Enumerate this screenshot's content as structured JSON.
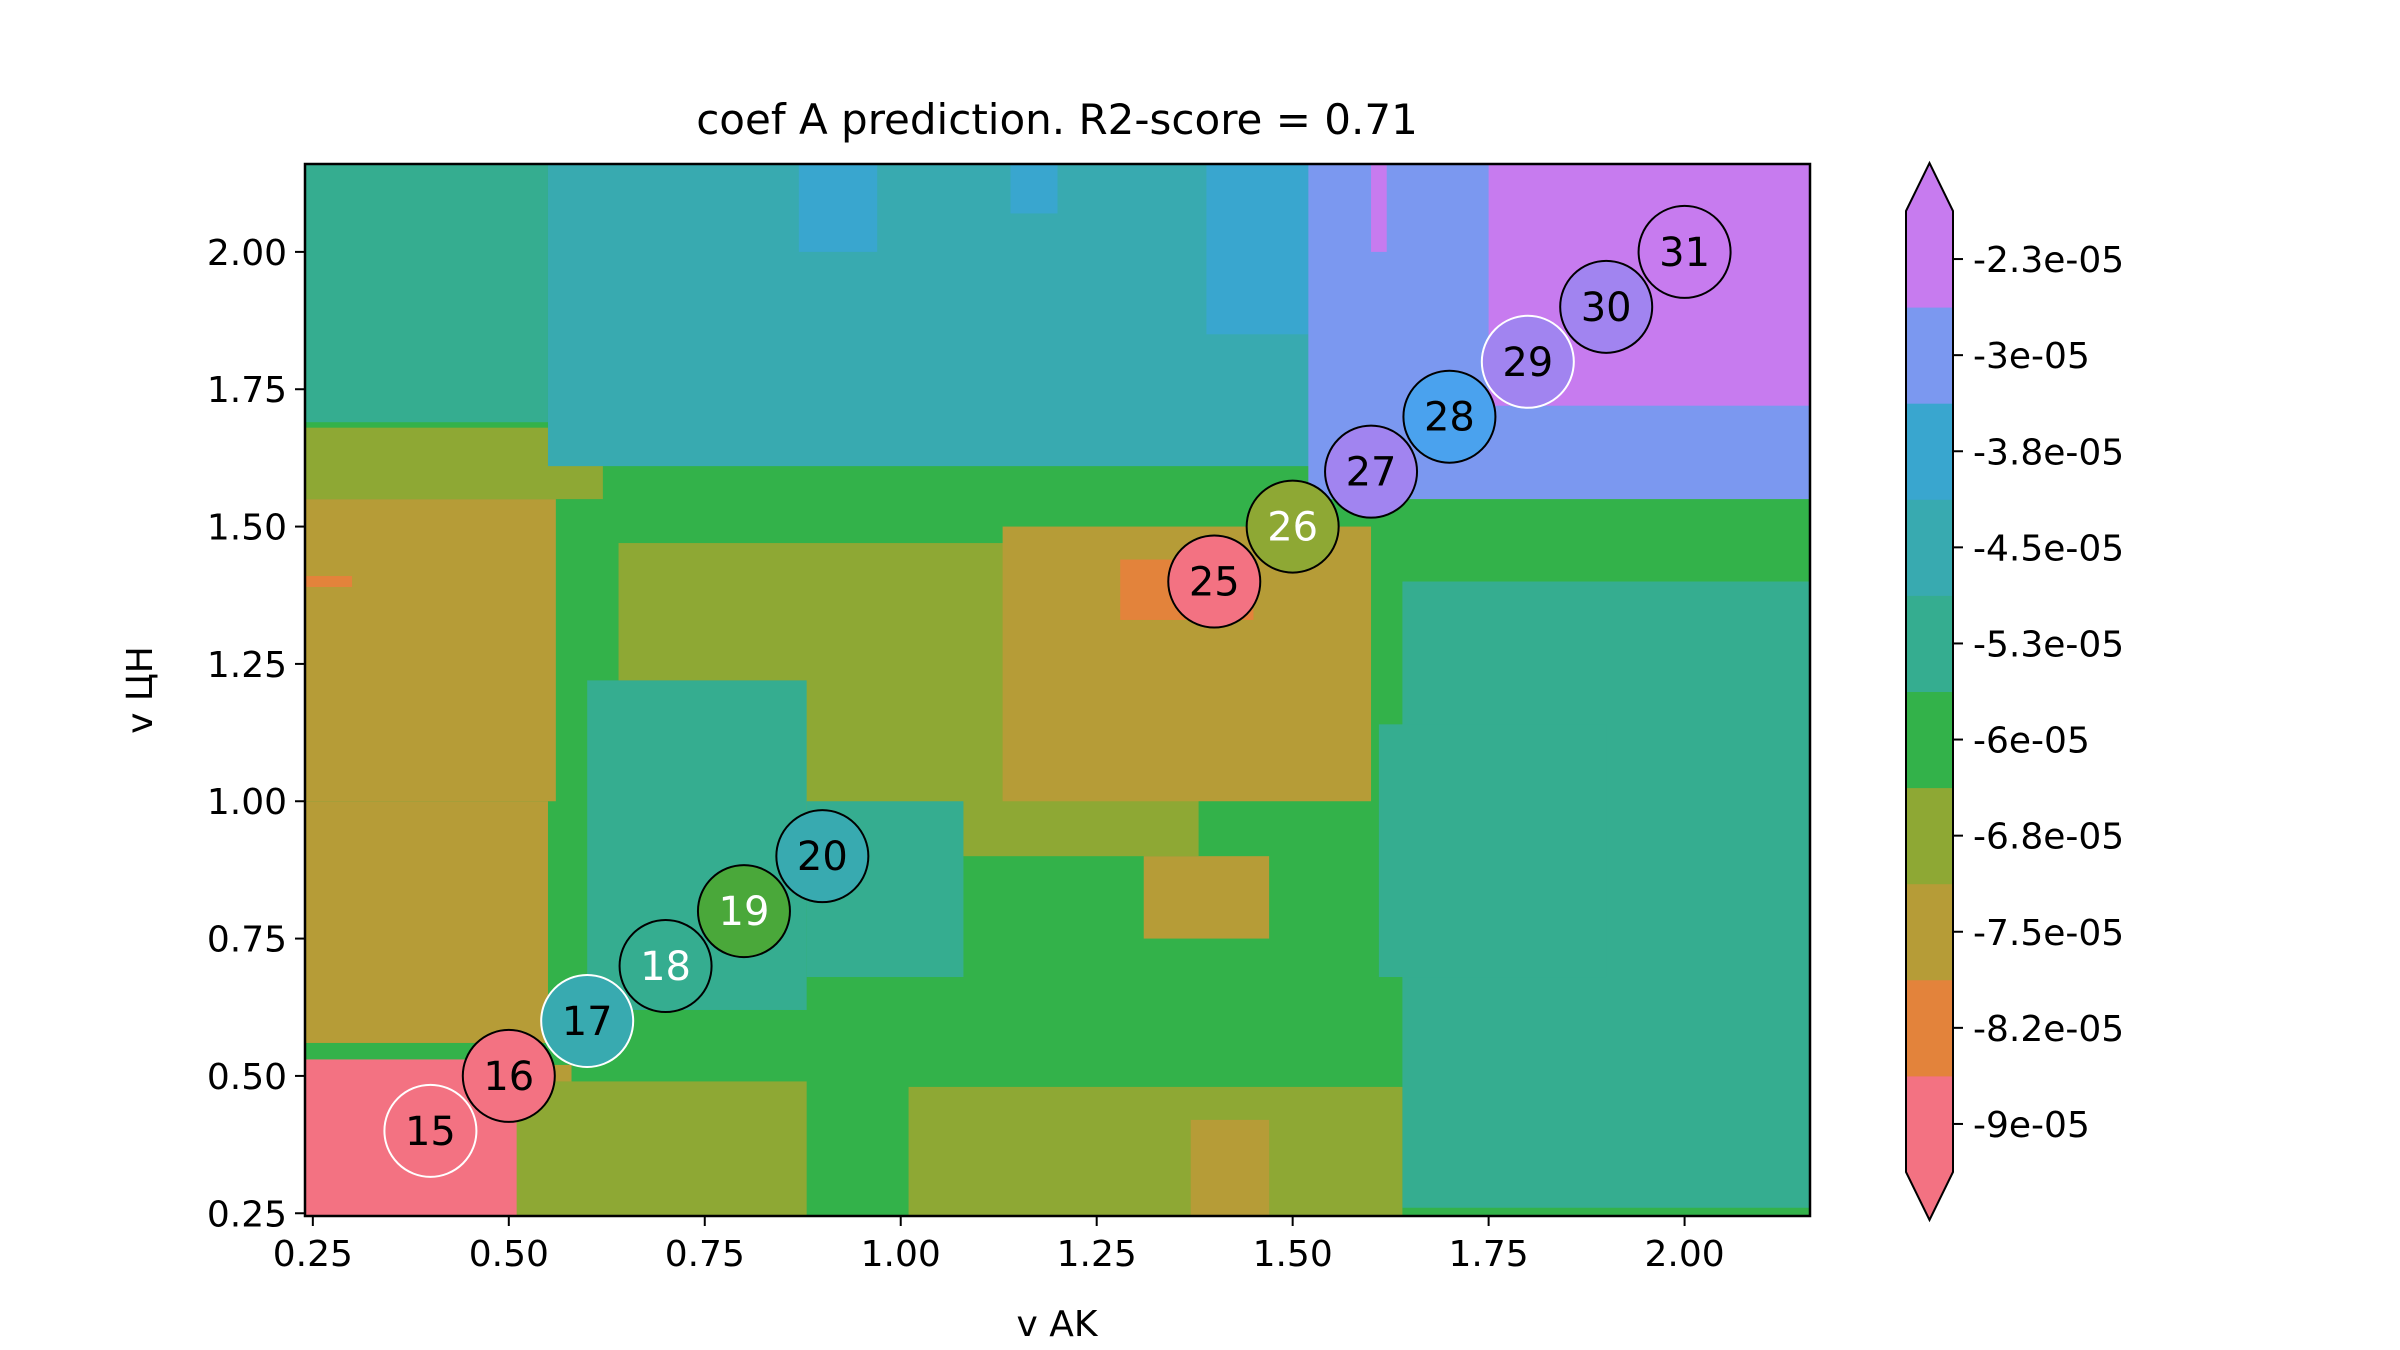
{
  "chart_data": {
    "type": "heatmap",
    "subtype": "filled-contour",
    "title": "coef A prediction. R2-score = 0.71",
    "xlabel": "v AK",
    "ylabel": "v ЦН",
    "xlim": [
      0.24,
      2.16
    ],
    "ylim": [
      0.245,
      2.16
    ],
    "x_ticks": [
      "0.25",
      "0.50",
      "0.75",
      "1.00",
      "1.25",
      "1.50",
      "1.75",
      "2.00"
    ],
    "y_ticks": [
      "0.25",
      "0.50",
      "0.75",
      "1.00",
      "1.25",
      "1.50",
      "1.75",
      "2.00"
    ],
    "levels": [
      -9.4e-05,
      -8.6e-05,
      -7.8e-05,
      -7.1e-05,
      -6.4e-05,
      -5.6e-05,
      -4.9e-05,
      -4.1e-05,
      -3.4e-05,
      -2.6e-05,
      -1.9e-05
    ],
    "level_colors": [
      "#f37282",
      "#e3833b",
      "#b69c37",
      "#8ea834",
      "#33b24a",
      "#35ad90",
      "#38aab0",
      "#39a6cf",
      "#7b98f0",
      "#c77bef"
    ],
    "colorbar": {
      "ticks": [
        "-2.3e-05",
        "-3e-05",
        "-3.8e-05",
        "-4.5e-05",
        "-5.3e-05",
        "-6e-05",
        "-6.8e-05",
        "-7.5e-05",
        "-8.2e-05",
        "-9e-05"
      ],
      "extend": "both"
    },
    "regions": [
      {
        "x": [
          0.24,
          2.16
        ],
        "y": [
          0.245,
          2.16
        ],
        "level": 4
      },
      {
        "x": [
          0.24,
          0.56
        ],
        "y": [
          1.0,
          1.55
        ],
        "level": 2
      },
      {
        "x": [
          0.24,
          0.62
        ],
        "y": [
          1.55,
          1.68
        ],
        "level": 3
      },
      {
        "x": [
          0.24,
          0.55
        ],
        "y": [
          0.56,
          1.0
        ],
        "level": 2
      },
      {
        "x": [
          0.24,
          0.52
        ],
        "y": [
          0.245,
          0.53
        ],
        "level": 0
      },
      {
        "x": [
          0.52,
          0.58
        ],
        "y": [
          0.245,
          0.52
        ],
        "level": 2
      },
      {
        "x": [
          0.24,
          0.3
        ],
        "y": [
          1.39,
          1.41
        ],
        "level": 1
      },
      {
        "x": [
          0.64,
          1.38
        ],
        "y": [
          0.9,
          1.47
        ],
        "level": 3
      },
      {
        "x": [
          1.13,
          1.6
        ],
        "y": [
          1.0,
          1.5
        ],
        "level": 2
      },
      {
        "x": [
          1.28,
          1.45
        ],
        "y": [
          1.33,
          1.44
        ],
        "level": 1
      },
      {
        "x": [
          0.6,
          0.88
        ],
        "y": [
          0.62,
          1.22
        ],
        "level": 5
      },
      {
        "x": [
          0.88,
          1.08
        ],
        "y": [
          0.68,
          1.0
        ],
        "level": 5
      },
      {
        "x": [
          1.64,
          2.16
        ],
        "y": [
          0.26,
          1.4
        ],
        "level": 5
      },
      {
        "x": [
          1.61,
          1.9
        ],
        "y": [
          0.68,
          1.14
        ],
        "level": 5
      },
      {
        "x": [
          1.31,
          1.47
        ],
        "y": [
          0.75,
          0.9
        ],
        "level": 2
      },
      {
        "x": [
          0.24,
          2.16
        ],
        "y": [
          1.69,
          2.16
        ],
        "level": 5
      },
      {
        "x": [
          0.24,
          0.6
        ],
        "y": [
          1.84,
          2.16
        ],
        "level": 5
      },
      {
        "x": [
          0.55,
          1.72
        ],
        "y": [
          1.61,
          2.16
        ],
        "level": 6
      },
      {
        "x": [
          0.87,
          0.97
        ],
        "y": [
          2.0,
          2.16
        ],
        "level": 7
      },
      {
        "x": [
          1.14,
          1.2
        ],
        "y": [
          2.07,
          2.16
        ],
        "level": 7
      },
      {
        "x": [
          1.39,
          1.52
        ],
        "y": [
          1.85,
          2.16
        ],
        "level": 7
      },
      {
        "x": [
          1.52,
          2.16
        ],
        "y": [
          1.55,
          2.16
        ],
        "level": 8
      },
      {
        "x": [
          1.75,
          2.16
        ],
        "y": [
          1.72,
          2.16
        ],
        "level": 9
      },
      {
        "x": [
          1.6,
          1.62
        ],
        "y": [
          2.0,
          2.16
        ],
        "level": 9
      },
      {
        "x": [
          0.51,
          0.88
        ],
        "y": [
          0.245,
          0.49
        ],
        "level": 3
      },
      {
        "x": [
          1.01,
          1.64
        ],
        "y": [
          0.245,
          0.48
        ],
        "level": 3
      },
      {
        "x": [
          1.37,
          1.47
        ],
        "y": [
          0.245,
          0.42
        ],
        "level": 2
      }
    ],
    "points": [
      {
        "label": "15",
        "x": 0.4,
        "y": 0.4,
        "color": "#f37282",
        "label_color": "black",
        "edge": "white"
      },
      {
        "label": "16",
        "x": 0.5,
        "y": 0.5,
        "color": "#f37282",
        "label_color": "black",
        "edge": "black"
      },
      {
        "label": "17",
        "x": 0.6,
        "y": 0.6,
        "color": "#38aab0",
        "label_color": "black",
        "edge": "white"
      },
      {
        "label": "18",
        "x": 0.7,
        "y": 0.7,
        "color": "#35ad90",
        "label_color": "white",
        "edge": "black"
      },
      {
        "label": "19",
        "x": 0.8,
        "y": 0.8,
        "color": "#4aa83a",
        "label_color": "white",
        "edge": "black"
      },
      {
        "label": "20",
        "x": 0.9,
        "y": 0.9,
        "color": "#38aab0",
        "label_color": "black",
        "edge": "black"
      },
      {
        "label": "25",
        "x": 1.4,
        "y": 1.4,
        "color": "#f37282",
        "label_color": "black",
        "edge": "black"
      },
      {
        "label": "26",
        "x": 1.5,
        "y": 1.5,
        "color": "#8ea834",
        "label_color": "white",
        "edge": "black"
      },
      {
        "label": "27",
        "x": 1.6,
        "y": 1.6,
        "color": "#a184f0",
        "label_color": "black",
        "edge": "black"
      },
      {
        "label": "28",
        "x": 1.7,
        "y": 1.7,
        "color": "#4aa2ee",
        "label_color": "black",
        "edge": "black"
      },
      {
        "label": "29",
        "x": 1.8,
        "y": 1.8,
        "color": "#a184f0",
        "label_color": "black",
        "edge": "white"
      },
      {
        "label": "30",
        "x": 1.9,
        "y": 1.9,
        "color": "#a184f0",
        "label_color": "black",
        "edge": "black"
      },
      {
        "label": "31",
        "x": 2.0,
        "y": 2.0,
        "color": "#c77bef",
        "label_color": "black",
        "edge": "black"
      }
    ]
  }
}
